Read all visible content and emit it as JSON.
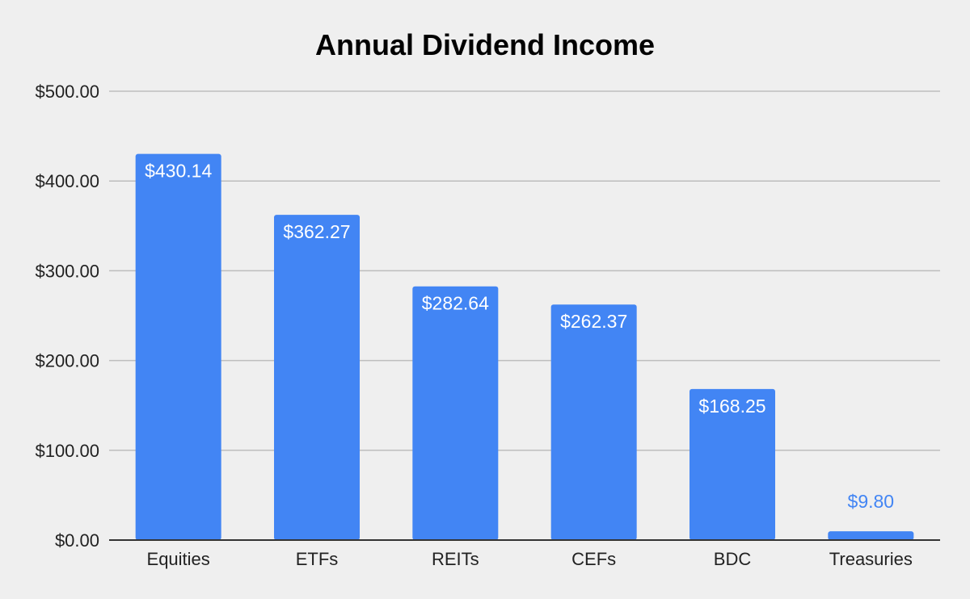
{
  "chart_data": {
    "type": "bar",
    "title": "Annual Dividend Income",
    "categories": [
      "Equities",
      "ETFs",
      "REITs",
      "CEFs",
      "BDC",
      "Treasuries"
    ],
    "values": [
      430.14,
      362.27,
      282.64,
      262.37,
      168.25,
      9.8
    ],
    "data_labels": [
      "$430.14",
      "$362.27",
      "$282.64",
      "$262.37",
      "$168.25",
      "$9.80"
    ],
    "y_ticks": [
      0,
      100,
      200,
      300,
      400,
      500
    ],
    "y_tick_labels": [
      "$0.00",
      "$100.00",
      "$200.00",
      "$300.00",
      "$400.00",
      "$500.00"
    ],
    "ylim": [
      0,
      500
    ],
    "grid": true,
    "legend": "none",
    "colors": {
      "bar": "#4285f4",
      "label_inside": "#ffffff",
      "label_outside": "#4285f4",
      "gridline": "#bdbdbd",
      "axis": "#333333",
      "background": "#efefef"
    }
  }
}
